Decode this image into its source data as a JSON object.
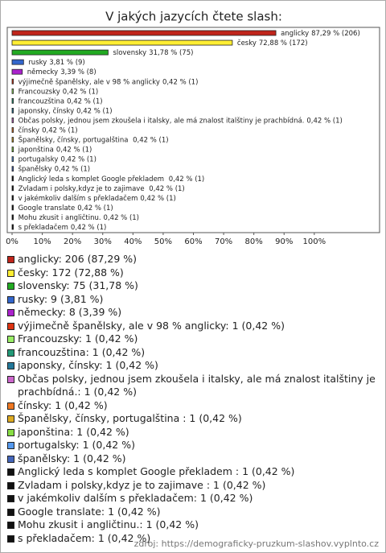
{
  "chart_data": {
    "type": "bar",
    "orientation": "horizontal",
    "title": "V jakých jazycích čtete slash:",
    "categories": [
      "anglicky",
      "česky",
      "slovensky",
      "rusky",
      "německy",
      "výjimečně španělsky, ale v 98 % anglicky",
      "Francouzsky",
      "francouzština",
      "japonsky, čínsky",
      "Občas polsky, jednou jsem zkoušela i italsky, ale má znalost italštiny je prachbídná.",
      "čínsky",
      "Španělsky, čínsky, portugalština ",
      "japonština",
      "portugalsky",
      "španělsky",
      "Anglický leda s komplet Google překladem ",
      "Zvladam i polsky,kdyz je to zajimave ",
      "v jakémkoliv dalším s překladačem",
      "Google translate",
      "Mohu zkusit i angličtinu.",
      "s překladačem"
    ],
    "values": [
      87.29,
      72.88,
      31.78,
      3.81,
      3.39,
      0.42,
      0.42,
      0.42,
      0.42,
      0.42,
      0.42,
      0.42,
      0.42,
      0.42,
      0.42,
      0.42,
      0.42,
      0.42,
      0.42,
      0.42,
      0.42
    ],
    "value_labels": [
      "87,29 % (206)",
      "72,88 % (172)",
      "31,78 % (75)",
      "3,81 % (9)",
      "3,39 % (8)",
      "0,42 % (1)",
      "0,42 % (1)",
      "0,42 % (1)",
      "0,42 % (1)",
      "0,42 % (1)",
      "0,42 % (1)",
      "0,42 % (1)",
      "0,42 % (1)",
      "0,42 % (1)",
      "0,42 % (1)",
      "0,42 % (1)",
      "0,42 % (1)",
      "0,42 % (1)",
      "0,42 % (1)",
      "0,42 % (1)",
      "0,42 % (1)"
    ],
    "colors": [
      "#c0251b",
      "#ffee33",
      "#22aa22",
      "#3366cc",
      "#aa22cc",
      "#dd3311",
      "#99ee66",
      "#229977",
      "#227799",
      "#cc66cc",
      "#ee7722",
      "#ddaa22",
      "#88dd44",
      "#5599ee",
      "#4466bb",
      "#111111",
      "#111111",
      "#111111",
      "#111111",
      "#111111",
      "#111111"
    ],
    "legend_items": [
      "anglicky: 206 (87,29 %)",
      "česky: 172 (72,88 %)",
      "slovensky: 75 (31,78 %)",
      "rusky: 9 (3,81 %)",
      "německy: 8 (3,39 %)",
      "výjimečně španělsky, ale v 98 % anglicky: 1 (0,42 %)",
      "Francouzsky: 1 (0,42 %)",
      "francouzština: 1 (0,42 %)",
      "japonsky, čínsky: 1 (0,42 %)",
      "Občas polsky, jednou jsem zkoušela i italsky, ale má znalost italštiny je prachbídná.: 1 (0,42 %)",
      "čínsky: 1 (0,42 %)",
      "Španělsky, čínsky, portugalština : 1 (0,42 %)",
      "japonština: 1 (0,42 %)",
      "portugalsky: 1 (0,42 %)",
      "španělsky: 1 (0,42 %)",
      "Anglický leda s komplet Google překladem : 1 (0,42 %)",
      "Zvladam i polsky,kdyz je to zajimave : 1 (0,42 %)",
      "v jakémkoliv dalším s překladačem: 1 (0,42 %)",
      "Google translate: 1 (0,42 %)",
      "Mohu zkusit i angličtinu.: 1 (0,42 %)",
      "s překladačem: 1 (0,42 %)"
    ],
    "xlim": [
      0,
      120
    ],
    "xticks": [
      {
        "value": 0,
        "label": "0%"
      },
      {
        "value": 10,
        "label": "10%"
      },
      {
        "value": 20,
        "label": "20%"
      },
      {
        "value": 30,
        "label": "30%"
      },
      {
        "value": 40,
        "label": "40%"
      },
      {
        "value": 50,
        "label": "50%"
      },
      {
        "value": 60,
        "label": "60%"
      },
      {
        "value": 70,
        "label": "70%"
      },
      {
        "value": 80,
        "label": "80%"
      },
      {
        "value": 90,
        "label": "90%"
      },
      {
        "value": 100,
        "label": "100%"
      }
    ],
    "source": "zdroj: https://demograficky-pruzkum-slashov.vyplnto.cz"
  }
}
